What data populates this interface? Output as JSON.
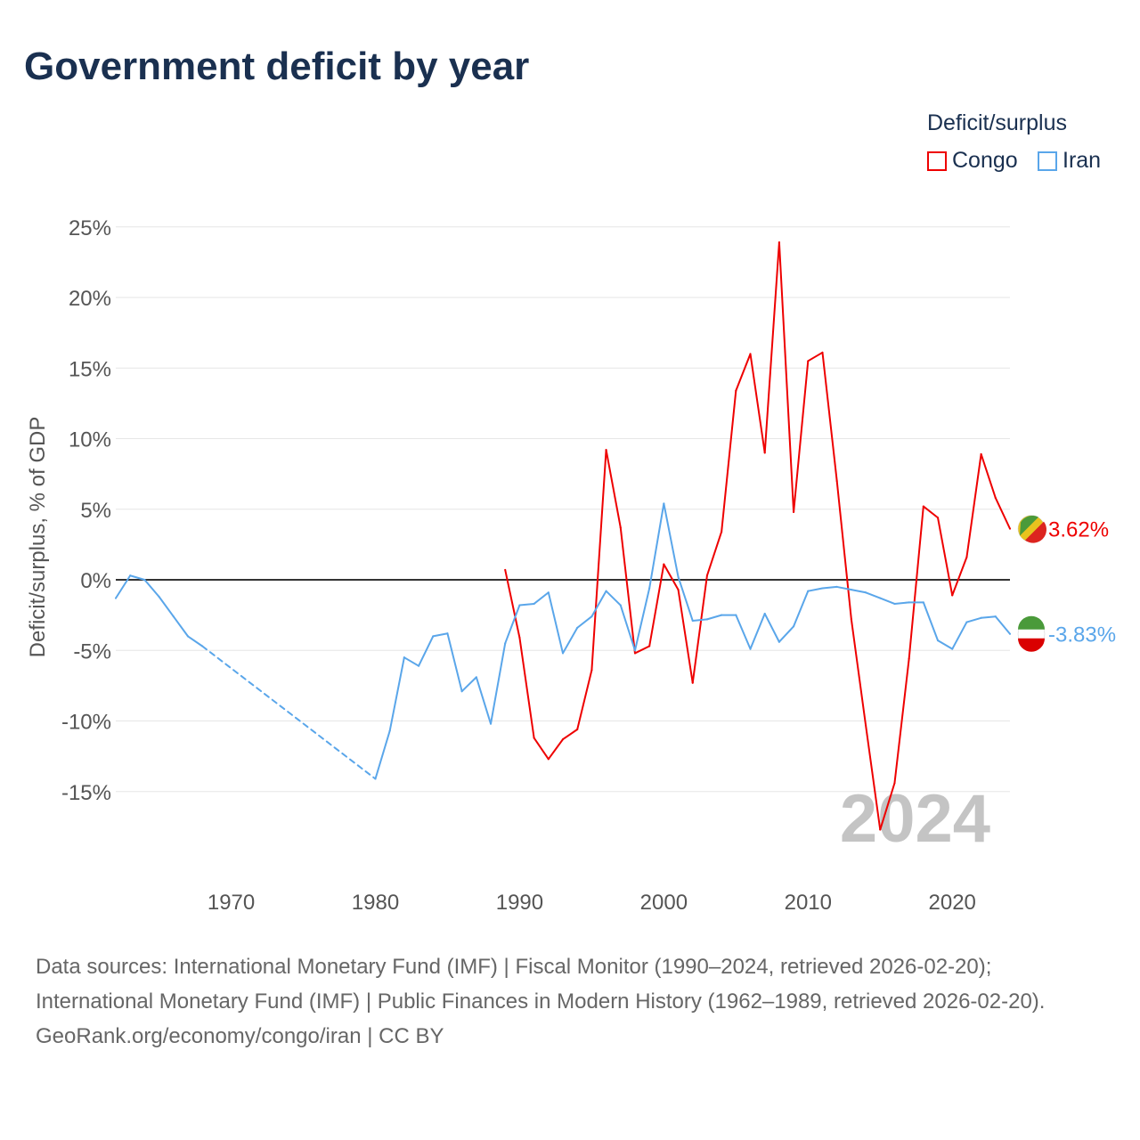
{
  "title": "Government deficit by year",
  "legend": {
    "title": "Deficit/surplus",
    "items": [
      {
        "label": "Congo",
        "color": "#ee0000"
      },
      {
        "label": "Iran",
        "color": "#5aa6ea"
      }
    ]
  },
  "watermark_year": "2024",
  "source": {
    "line1": "Data sources: International Monetary Fund (IMF) | Fiscal Monitor (1990–2024, retrieved 2026-02-20);",
    "line2": "International Monetary Fund (IMF) | Public Finances in Modern History (1962–1989, retrieved 2026-02-20).",
    "credit": "GeoRank.org/economy/congo/iran | CC BY"
  },
  "chart_data": {
    "type": "line",
    "title": "Government deficit by year",
    "ylabel": "Deficit/surplus, % of GDP",
    "xlabel": "",
    "xlim": [
      1962,
      2024
    ],
    "ylim": [
      -20,
      25
    ],
    "yticks": [
      25,
      20,
      15,
      10,
      5,
      0,
      -5,
      -10,
      -15
    ],
    "ytick_labels": [
      "25%",
      "20%",
      "15%",
      "10%",
      "5%",
      "0%",
      "-5%",
      "-10%",
      "-15%"
    ],
    "xticks": [
      1970,
      1980,
      1990,
      2000,
      2010,
      2020
    ],
    "xtick_labels": [
      "1970",
      "1980",
      "1990",
      "2000",
      "2010",
      "2020"
    ],
    "series": [
      {
        "name": "Congo",
        "color": "#ee0000",
        "end_label": "3.62%",
        "x": [
          1989,
          1990,
          1991,
          1992,
          1993,
          1994,
          1995,
          1996,
          1997,
          1998,
          1999,
          2000,
          2001,
          2002,
          2003,
          2004,
          2005,
          2006,
          2007,
          2008,
          2009,
          2010,
          2011,
          2012,
          2013,
          2014,
          2015,
          2016,
          2017,
          2018,
          2019,
          2020,
          2021,
          2022,
          2023,
          2024
        ],
        "y": [
          0.7,
          -4.1,
          -11.2,
          -12.7,
          -11.3,
          -10.6,
          -6.4,
          9.2,
          3.7,
          -5.2,
          -4.7,
          1.1,
          -0.7,
          -7.3,
          0.3,
          3.4,
          13.4,
          16.0,
          9.0,
          23.9,
          4.8,
          15.5,
          16.1,
          7.0,
          -2.8,
          -10.3,
          -17.7,
          -14.4,
          -5.6,
          5.2,
          4.4,
          -1.1,
          1.6,
          8.9,
          5.8,
          3.62
        ]
      },
      {
        "name": "Iran",
        "color": "#5aa6ea",
        "end_label": "-3.83%",
        "x": [
          1962,
          1963,
          1964,
          1965,
          1966,
          1967,
          1968,
          1980,
          1981,
          1982,
          1983,
          1984,
          1985,
          1986,
          1987,
          1988,
          1989,
          1990,
          1991,
          1992,
          1993,
          1994,
          1995,
          1996,
          1997,
          1998,
          1999,
          2000,
          2001,
          2002,
          2003,
          2004,
          2005,
          2006,
          2007,
          2008,
          2009,
          2010,
          2011,
          2012,
          2013,
          2014,
          2015,
          2016,
          2017,
          2018,
          2019,
          2020,
          2021,
          2022,
          2023,
          2024
        ],
        "y": [
          -1.3,
          0.3,
          0.0,
          -1.2,
          -2.6,
          -4.0,
          -4.7,
          -14.1,
          -10.7,
          -5.5,
          -6.1,
          -4.0,
          -3.8,
          -7.9,
          -6.9,
          -10.2,
          -4.5,
          -1.8,
          -1.7,
          -0.9,
          -5.2,
          -3.4,
          -2.6,
          -0.8,
          -1.8,
          -5.0,
          -0.6,
          5.4,
          0.2,
          -2.9,
          -2.8,
          -2.5,
          -2.5,
          -4.9,
          -2.4,
          -4.4,
          -3.3,
          -0.8,
          -0.6,
          -0.5,
          -0.7,
          -0.9,
          -1.3,
          -1.7,
          -1.6,
          -1.6,
          -4.3,
          -4.9,
          -3.0,
          -2.7,
          -2.6,
          -3.83
        ]
      }
    ]
  }
}
